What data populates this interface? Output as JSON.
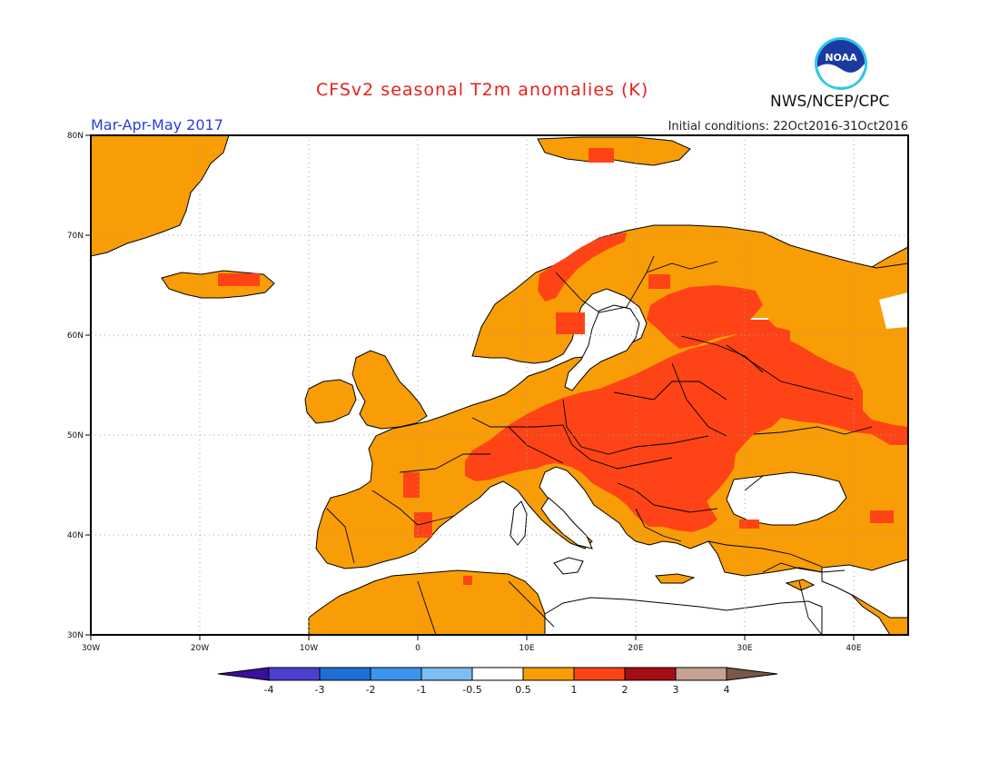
{
  "header": {
    "title": "CFSv2 seasonal T2m anomalies (K)",
    "period": "Mar-Apr-May 2017",
    "initial_conditions": "Initial conditions: 22Oct2016-31Oct2016",
    "agency": "NWS/NCEP/CPC",
    "logo_text": "NOAA"
  },
  "map": {
    "lon_ticks": [
      "30W",
      "20W",
      "10W",
      "0",
      "10E",
      "20E",
      "30E",
      "40E"
    ],
    "lat_ticks": [
      "80N",
      "70N",
      "60N",
      "50N",
      "40N",
      "30N"
    ],
    "extent": {
      "lon": [
        -30,
        45
      ],
      "lat": [
        30,
        80
      ]
    }
  },
  "colorbar": {
    "labels": [
      "-4",
      "-3",
      "-2",
      "-1",
      "-0.5",
      "0.5",
      "1",
      "2",
      "3",
      "4"
    ],
    "colors": [
      "#3a0f9c",
      "#4a3fcf",
      "#1f6ed4",
      "#3c95ec",
      "#7cbdf2",
      "#ffffff",
      "#f99d06",
      "#fe4416",
      "#a40e12",
      "#c5a191",
      "#7a5746"
    ]
  },
  "colors": {
    "background": "#ffffff",
    "title": "#e8201a",
    "period": "#2a3ce0",
    "warm": "#f99d06",
    "hot": "#fe4416"
  }
}
